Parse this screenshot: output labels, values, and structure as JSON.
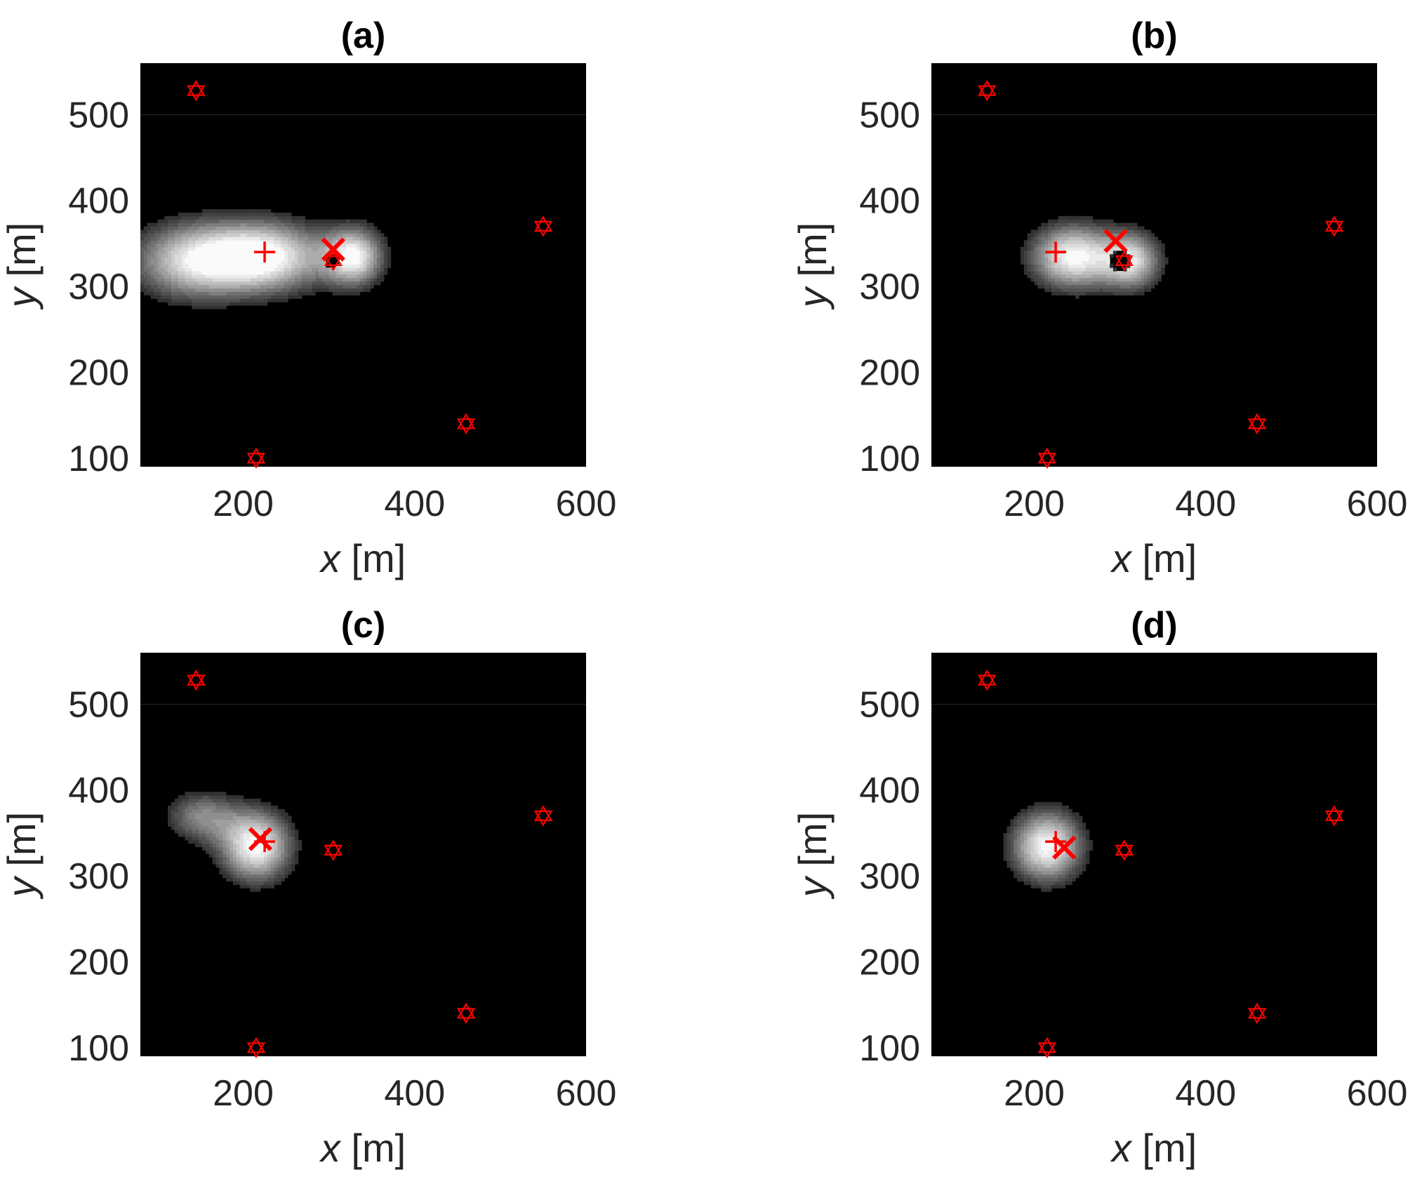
{
  "chart_data": [
    {
      "type": "heatmap",
      "title": "(a)",
      "xlabel_var": "x",
      "xlabel_unit": " [m]",
      "ylabel_var": "y",
      "ylabel_unit": " [m]",
      "xlim": [
        80,
        600
      ],
      "ylim": [
        90,
        560
      ],
      "xticks": [
        200,
        400,
        600
      ],
      "yticks": [
        100,
        200,
        300,
        400,
        500
      ],
      "grid": false,
      "colormap": "gray",
      "sensors": [
        {
          "x": 145,
          "y": 528
        },
        {
          "x": 550,
          "y": 370
        },
        {
          "x": 460,
          "y": 140
        },
        {
          "x": 215,
          "y": 100
        },
        {
          "x": 305,
          "y": 330
        }
      ],
      "true_source": {
        "x": 225,
        "y": 340
      },
      "estimate": {
        "x": 305,
        "y": 343
      },
      "field": [
        {
          "x": 225,
          "y": 335,
          "sx": 95,
          "sy": 55,
          "w": 1.0
        },
        {
          "x": 135,
          "y": 330,
          "sx": 90,
          "sy": 60,
          "w": 0.75
        },
        {
          "x": 330,
          "y": 335,
          "sx": 45,
          "sy": 45,
          "w": 0.9
        }
      ],
      "hole": {
        "x": 303,
        "y": 331,
        "r": 9
      }
    },
    {
      "type": "heatmap",
      "title": "(b)",
      "xlabel_var": "x",
      "xlabel_unit": " [m]",
      "ylabel_var": "y",
      "ylabel_unit": " [m]",
      "xlim": [
        80,
        600
      ],
      "ylim": [
        90,
        560
      ],
      "xticks": [
        200,
        400,
        600
      ],
      "yticks": [
        100,
        200,
        300,
        400,
        500
      ],
      "grid": false,
      "colormap": "gray",
      "sensors": [
        {
          "x": 145,
          "y": 528
        },
        {
          "x": 550,
          "y": 370
        },
        {
          "x": 460,
          "y": 140
        },
        {
          "x": 215,
          "y": 100
        },
        {
          "x": 305,
          "y": 330
        }
      ],
      "true_source": {
        "x": 225,
        "y": 340
      },
      "estimate": {
        "x": 295,
        "y": 353
      },
      "field": [
        {
          "x": 245,
          "y": 335,
          "sx": 65,
          "sy": 50,
          "w": 1.0
        },
        {
          "x": 315,
          "y": 330,
          "sx": 45,
          "sy": 45,
          "w": 0.8
        }
      ],
      "hole": {
        "x": 300,
        "y": 330,
        "r": 12
      }
    },
    {
      "type": "heatmap",
      "title": "(c)",
      "xlabel_var": "x",
      "xlabel_unit": " [m]",
      "ylabel_var": "y",
      "ylabel_unit": " [m]",
      "xlim": [
        80,
        600
      ],
      "ylim": [
        90,
        560
      ],
      "xticks": [
        200,
        400,
        600
      ],
      "yticks": [
        100,
        200,
        300,
        400,
        500
      ],
      "grid": false,
      "colormap": "gray",
      "sensors": [
        {
          "x": 145,
          "y": 528
        },
        {
          "x": 550,
          "y": 370
        },
        {
          "x": 460,
          "y": 140
        },
        {
          "x": 215,
          "y": 100
        },
        {
          "x": 305,
          "y": 330
        }
      ],
      "true_source": {
        "x": 225,
        "y": 340
      },
      "estimate": {
        "x": 220,
        "y": 343
      },
      "field": [
        {
          "x": 215,
          "y": 335,
          "sx": 55,
          "sy": 55,
          "w": 1.0
        },
        {
          "x": 150,
          "y": 370,
          "sx": 55,
          "sy": 40,
          "w": 0.55
        }
      ],
      "hole": null
    },
    {
      "type": "heatmap",
      "title": "(d)",
      "xlabel_var": "x",
      "xlabel_unit": " [m]",
      "ylabel_var": "y",
      "ylabel_unit": " [m]",
      "xlim": [
        80,
        600
      ],
      "ylim": [
        90,
        560
      ],
      "xticks": [
        200,
        400,
        600
      ],
      "yticks": [
        100,
        200,
        300,
        400,
        500
      ],
      "grid": false,
      "colormap": "gray",
      "sensors": [
        {
          "x": 145,
          "y": 528
        },
        {
          "x": 550,
          "y": 370
        },
        {
          "x": 460,
          "y": 140
        },
        {
          "x": 215,
          "y": 100
        },
        {
          "x": 305,
          "y": 330
        }
      ],
      "true_source": {
        "x": 225,
        "y": 340
      },
      "estimate": {
        "x": 235,
        "y": 333
      },
      "field": [
        {
          "x": 215,
          "y": 335,
          "sx": 55,
          "sy": 55,
          "w": 1.0
        }
      ],
      "hole": null
    }
  ]
}
